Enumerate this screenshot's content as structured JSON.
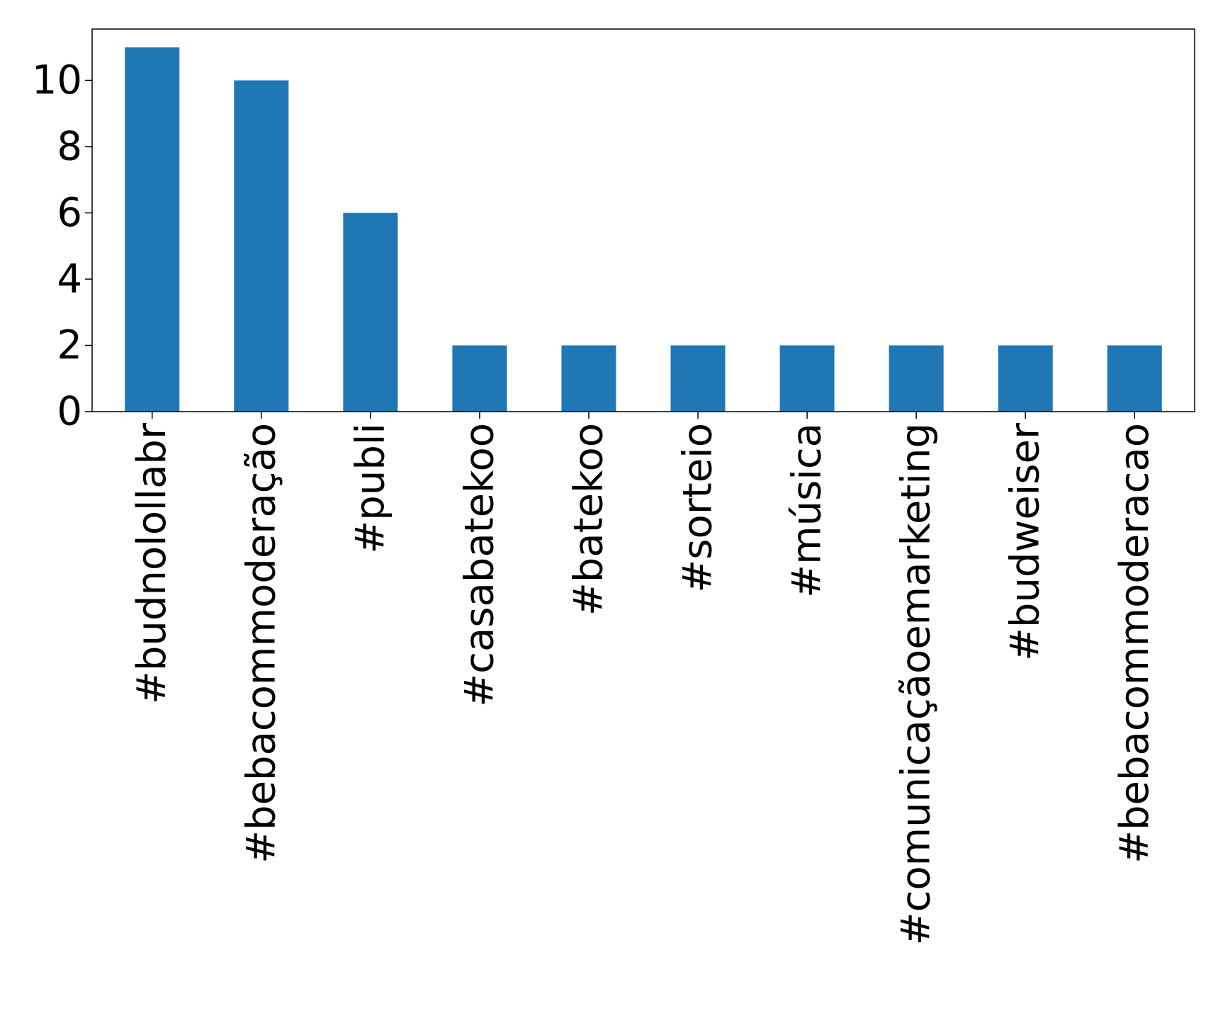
{
  "chart_data": {
    "type": "bar",
    "title": "",
    "xlabel": "",
    "ylabel": "",
    "categories": [
      "#budnolollabr",
      "#bebacommoderação",
      "#publi",
      "#casabatekoo",
      "#batekoo",
      "#sorteio",
      "#música",
      "#comunicaçãoemarketing",
      "#budweiser",
      "#bebacommoderacao"
    ],
    "values": [
      11,
      10,
      6,
      2,
      2,
      2,
      2,
      2,
      2,
      2
    ],
    "ylim": [
      0,
      11.55
    ],
    "yticks": [
      "0",
      "2",
      "4",
      "6",
      "8",
      "10"
    ],
    "bar_color": "#1f77b4",
    "grid": false,
    "legend": "none"
  }
}
